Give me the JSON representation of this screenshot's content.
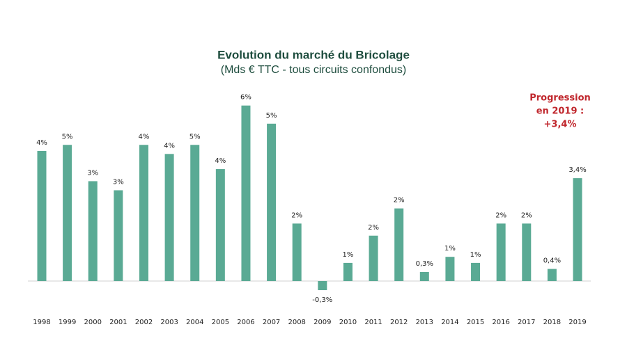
{
  "chart_data": {
    "type": "bar",
    "title": "Evolution du marché du Bricolage",
    "subtitle": "(Mds € TTC - tous circuits confondus)",
    "annotation": [
      "Progression",
      "en 2019 :",
      "+3,4%"
    ],
    "annotation_color": "#c0272d",
    "color": "#5aaa94",
    "categories": [
      "1998",
      "1999",
      "2000",
      "2001",
      "2002",
      "2003",
      "2004",
      "2005",
      "2006",
      "2007",
      "2008",
      "2009",
      "2010",
      "2011",
      "2012",
      "2013",
      "2014",
      "2015",
      "2016",
      "2017",
      "2018",
      "2019"
    ],
    "values": [
      4.3,
      4.5,
      3.3,
      3.0,
      4.5,
      4.2,
      4.5,
      3.7,
      5.8,
      5.2,
      1.9,
      -0.3,
      0.6,
      1.5,
      2.4,
      0.3,
      0.8,
      0.6,
      1.9,
      1.9,
      0.4,
      3.4
    ],
    "value_labels": [
      "4%",
      "5%",
      "3%",
      "3%",
      "4%",
      "4%",
      "5%",
      "4%",
      "6%",
      "5%",
      "2%",
      "-0,3%",
      "1%",
      "2%",
      "2%",
      "0,3%",
      "1%",
      "1%",
      "2%",
      "2%",
      "0,4%",
      "3,4%"
    ]
  }
}
